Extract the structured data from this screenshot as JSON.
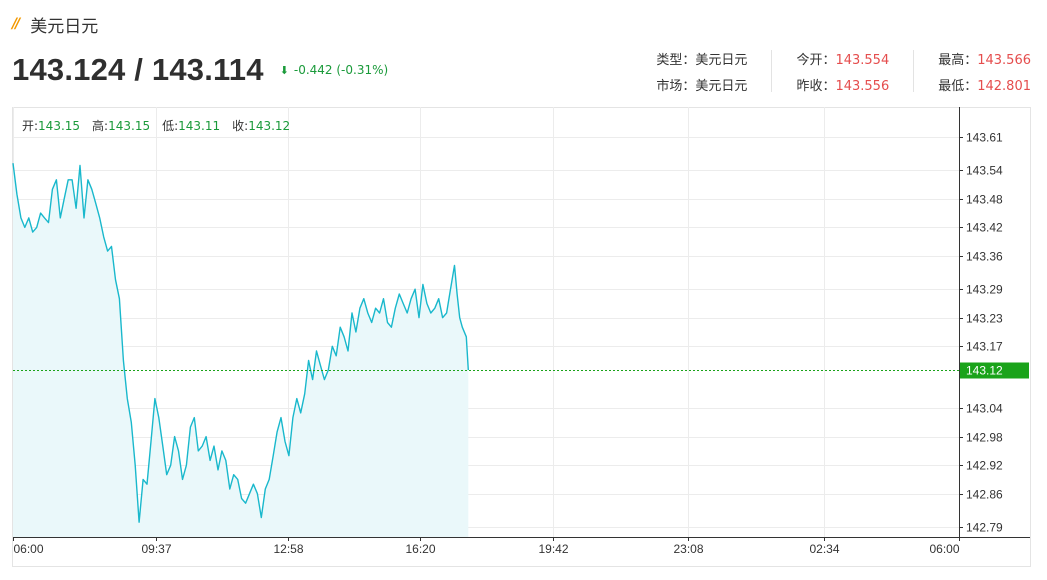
{
  "header": {
    "title": "美元日元",
    "price": "143.124 / 143.114",
    "change": "-0.442 (-0.31%)"
  },
  "stats": {
    "type_label": "类型：",
    "type_value": "美元日元",
    "market_label": "市场：",
    "market_value": "美元日元",
    "open_label": "今开：",
    "open_value": "143.554",
    "prev_label": "昨收：",
    "prev_value": "143.556",
    "high_label": "最高：",
    "high_value": "143.566",
    "low_label": "最低：",
    "low_value": "142.801"
  },
  "ohlc": {
    "open_label": "开:",
    "open": "143.15",
    "high_label": "高:",
    "high": "143.15",
    "low_label": "低:",
    "low": "143.11",
    "close_label": "收:",
    "close": "143.12"
  },
  "colors": {
    "line": "#19b8cc",
    "fill": "#eaf8fa",
    "current": "#1aa31a",
    "up": "#e54d4d",
    "down": "#1a9a3a",
    "grid": "#ececec",
    "accent": "#f39800"
  },
  "chart_data": {
    "type": "area",
    "current_value": 143.12,
    "y_ticks": [
      "143.61",
      "143.54",
      "143.48",
      "143.42",
      "143.36",
      "143.29",
      "143.23",
      "143.17",
      "143.04",
      "142.98",
      "142.92",
      "142.86",
      "142.79"
    ],
    "x_ticks": [
      "06:00",
      "09:37",
      "12:58",
      "16:20",
      "19:42",
      "23:08",
      "02:34",
      "06:00"
    ],
    "x_tick_minutes": [
      0,
      217,
      418,
      620,
      822,
      1028,
      1234,
      1440
    ],
    "ylim": [
      142.79,
      143.61
    ],
    "grid": true,
    "x": [
      0,
      6,
      12,
      18,
      24,
      30,
      36,
      42,
      48,
      54,
      60,
      66,
      72,
      78,
      84,
      90,
      96,
      102,
      108,
      114,
      120,
      126,
      132,
      138,
      144,
      150,
      156,
      162,
      168,
      174,
      180,
      186,
      192,
      198,
      204,
      210,
      216,
      222,
      228,
      234,
      240,
      246,
      252,
      258,
      264,
      270,
      276,
      282,
      288,
      294,
      300,
      306,
      312,
      318,
      324,
      330,
      336,
      342,
      348,
      354,
      360,
      366,
      372,
      378,
      384,
      390,
      396,
      402,
      408,
      414,
      420,
      426,
      432,
      438,
      444,
      450,
      456,
      462,
      468,
      474,
      480,
      486,
      492,
      498,
      504,
      510,
      516,
      522,
      528,
      534,
      540,
      546,
      552,
      558,
      564,
      570,
      576,
      582,
      588,
      594,
      600,
      606,
      612,
      618,
      624,
      630,
      636,
      642,
      648,
      654,
      660,
      666,
      672,
      676,
      680,
      684,
      690,
      693
    ],
    "y": [
      143.555,
      143.49,
      143.44,
      143.42,
      143.44,
      143.41,
      143.42,
      143.45,
      143.44,
      143.43,
      143.5,
      143.52,
      143.44,
      143.48,
      143.52,
      143.52,
      143.46,
      143.55,
      143.44,
      143.52,
      143.5,
      143.47,
      143.44,
      143.4,
      143.37,
      143.38,
      143.31,
      143.27,
      143.14,
      143.06,
      143.01,
      142.92,
      142.8,
      142.89,
      142.88,
      142.97,
      143.06,
      143.02,
      142.96,
      142.9,
      142.92,
      142.98,
      142.95,
      142.89,
      142.92,
      143.0,
      143.02,
      142.95,
      142.96,
      142.98,
      142.93,
      142.96,
      142.91,
      142.95,
      142.93,
      142.87,
      142.9,
      142.89,
      142.85,
      142.84,
      142.86,
      142.88,
      142.86,
      142.81,
      142.87,
      142.89,
      142.94,
      142.99,
      143.02,
      142.97,
      142.94,
      143.02,
      143.06,
      143.03,
      143.07,
      143.14,
      143.1,
      143.16,
      143.13,
      143.1,
      143.12,
      143.17,
      143.15,
      143.21,
      143.19,
      143.16,
      143.24,
      143.2,
      143.25,
      143.27,
      143.24,
      143.22,
      143.25,
      143.24,
      143.27,
      143.22,
      143.21,
      143.25,
      143.28,
      143.26,
      143.24,
      143.27,
      143.29,
      143.23,
      143.3,
      143.26,
      143.24,
      143.25,
      143.27,
      143.23,
      143.24,
      143.29,
      143.34,
      143.28,
      143.23,
      143.21,
      143.19,
      143.12
    ]
  }
}
